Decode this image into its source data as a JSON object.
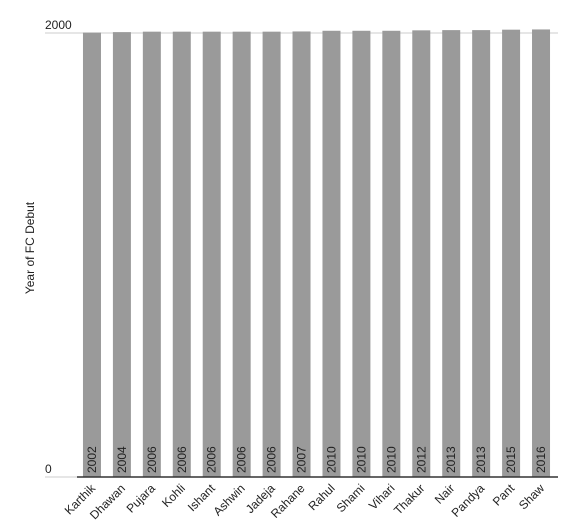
{
  "chart_data": {
    "type": "bar",
    "y_label": "Year of FC Debut",
    "categories": [
      "Karthik",
      "Dhawan",
      "Pujara",
      "Kohli",
      "Ishant",
      "Ashwin",
      "Jadeja",
      "Rahane",
      "Rahul",
      "Shami",
      "Vihari",
      "Thakur",
      "Nair",
      "Pandya",
      "Pant",
      "Shaw"
    ],
    "values": [
      2002,
      2004,
      2006,
      2006,
      2006,
      2006,
      2006,
      2007,
      2010,
      2010,
      2010,
      2012,
      2013,
      2013,
      2015,
      2016
    ],
    "color": "#9a9a9a",
    "ylim": [
      0,
      2000
    ],
    "yticks": [
      0,
      2000
    ],
    "grid": true
  }
}
